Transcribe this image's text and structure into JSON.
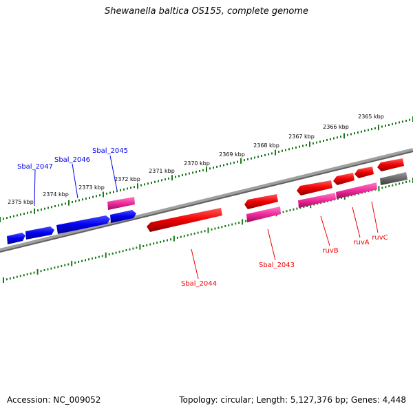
{
  "title": "Shewanella baltica OS155, complete genome",
  "footer": {
    "accession": "Accession: NC_009052",
    "summary": "Topology: circular; Length: 5,127,376 bp; Genes: 4,448"
  },
  "colors": {
    "forward_gene": "#0000ee",
    "reverse_gene": "#ee0000",
    "highlight_gene": "#ee2a9a",
    "other_gene": "#6a6a6a",
    "backbone": "#7a7a7a",
    "tick": "#1a7a1a"
  },
  "ruler": {
    "labels": [
      "2365 kbp",
      "2366 kbp",
      "2367 kbp",
      "2368 kbp",
      "2369 kbp",
      "2370 kbp",
      "2371 kbp",
      "2372 kbp",
      "2373 kbp",
      "2374 kbp",
      "2375 kbp"
    ]
  },
  "gene_labels": [
    {
      "id": "sbal2047",
      "text": "Sbal_2047",
      "strand": "forward"
    },
    {
      "id": "sbal2046",
      "text": "Sbal_2046",
      "strand": "forward"
    },
    {
      "id": "sbal2045",
      "text": "Sbal_2045",
      "strand": "forward"
    },
    {
      "id": "sbal2044",
      "text": "Sbal_2044",
      "strand": "reverse"
    },
    {
      "id": "sbal2043",
      "text": "Sbal_2043",
      "strand": "reverse"
    },
    {
      "id": "ruvB",
      "text": "ruvB",
      "strand": "reverse"
    },
    {
      "id": "ruvA",
      "text": "ruvA",
      "strand": "reverse"
    },
    {
      "id": "ruvC",
      "text": "ruvC",
      "strand": "reverse"
    }
  ]
}
